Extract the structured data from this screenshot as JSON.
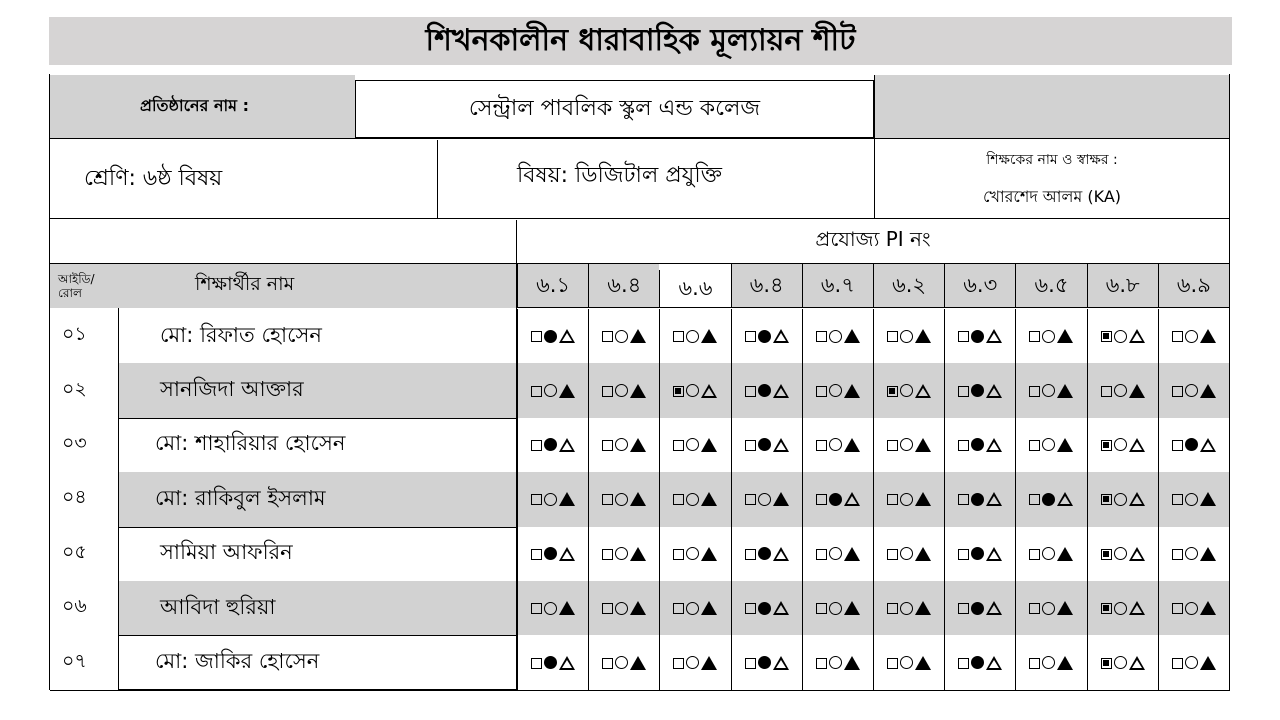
{
  "title": "শিখনকালীন ধারাবাহিক মূল্যায়ন শীট",
  "institution": {
    "label": "প্রতিষ্ঠানের নাম :",
    "value": "সেন্ট্রাল পাবলিক স্কুল এন্ড কলেজ"
  },
  "class_subject": "শ্রেণি: ৬ষ্ঠ বিষয়",
  "subject": "বিষয়: ডিজিটাল প্রযুক্তি",
  "teacher": {
    "label": "শিক্ষকের নাম ও স্বাক্ষর :",
    "name": "খোরশেদ আলম (KA)"
  },
  "pi_title": "প্রযোজ্য PI নং",
  "columns": {
    "id_line1": "আইডি/",
    "id_line2": "রোল",
    "name": "শিক্ষার্থীর নাম"
  },
  "pi_numbers": [
    "৬.১",
    "৬.৪",
    "৬.৬",
    "৬.৪",
    "৬.৭",
    "৬.২",
    "৬.৩",
    "৬.৫",
    "৬.৮",
    "৬.৯"
  ],
  "legend_note": "Each cell shows square / circle / triangle; filled shape = selected level",
  "students": [
    {
      "id": "০১",
      "name": "মো: রিফাত হোসেন",
      "marks": [
        "circle",
        "triangle",
        "triangle",
        "circle",
        "triangle",
        "triangle",
        "circle",
        "triangle",
        "square",
        "triangle"
      ]
    },
    {
      "id": "০২",
      "name": "সানজিদা আক্তার",
      "marks": [
        "triangle",
        "triangle",
        "square",
        "circle",
        "triangle",
        "square",
        "circle",
        "triangle",
        "triangle",
        "triangle"
      ]
    },
    {
      "id": "০৩",
      "name": "মো: শাহারিয়ার হোসেন",
      "marks": [
        "circle",
        "triangle",
        "triangle",
        "circle",
        "triangle",
        "triangle",
        "circle",
        "triangle",
        "square",
        "circle"
      ]
    },
    {
      "id": "০৪",
      "name": "মো: রাকিবুল ইসলাম",
      "marks": [
        "triangle",
        "triangle",
        "triangle",
        "triangle",
        "circle",
        "triangle",
        "circle",
        "circle",
        "square",
        "triangle"
      ]
    },
    {
      "id": "০৫",
      "name": "সামিয়া আফরিন",
      "marks": [
        "circle",
        "triangle",
        "triangle",
        "circle",
        "triangle",
        "triangle",
        "circle",
        "triangle",
        "square",
        "triangle"
      ]
    },
    {
      "id": "০৬",
      "name": "আবিদা হুরিয়া",
      "marks": [
        "triangle",
        "triangle",
        "triangle",
        "circle",
        "triangle",
        "triangle",
        "circle",
        "triangle",
        "square",
        "triangle"
      ]
    },
    {
      "id": "০৭",
      "name": "মো: জাকির হোসেন",
      "marks": [
        "circle",
        "triangle",
        "triangle",
        "circle",
        "triangle",
        "triangle",
        "circle",
        "triangle",
        "square",
        "triangle"
      ]
    }
  ],
  "colors": {
    "header_gray": "#d6d4d4",
    "row_gray": "#d2d2d2"
  }
}
